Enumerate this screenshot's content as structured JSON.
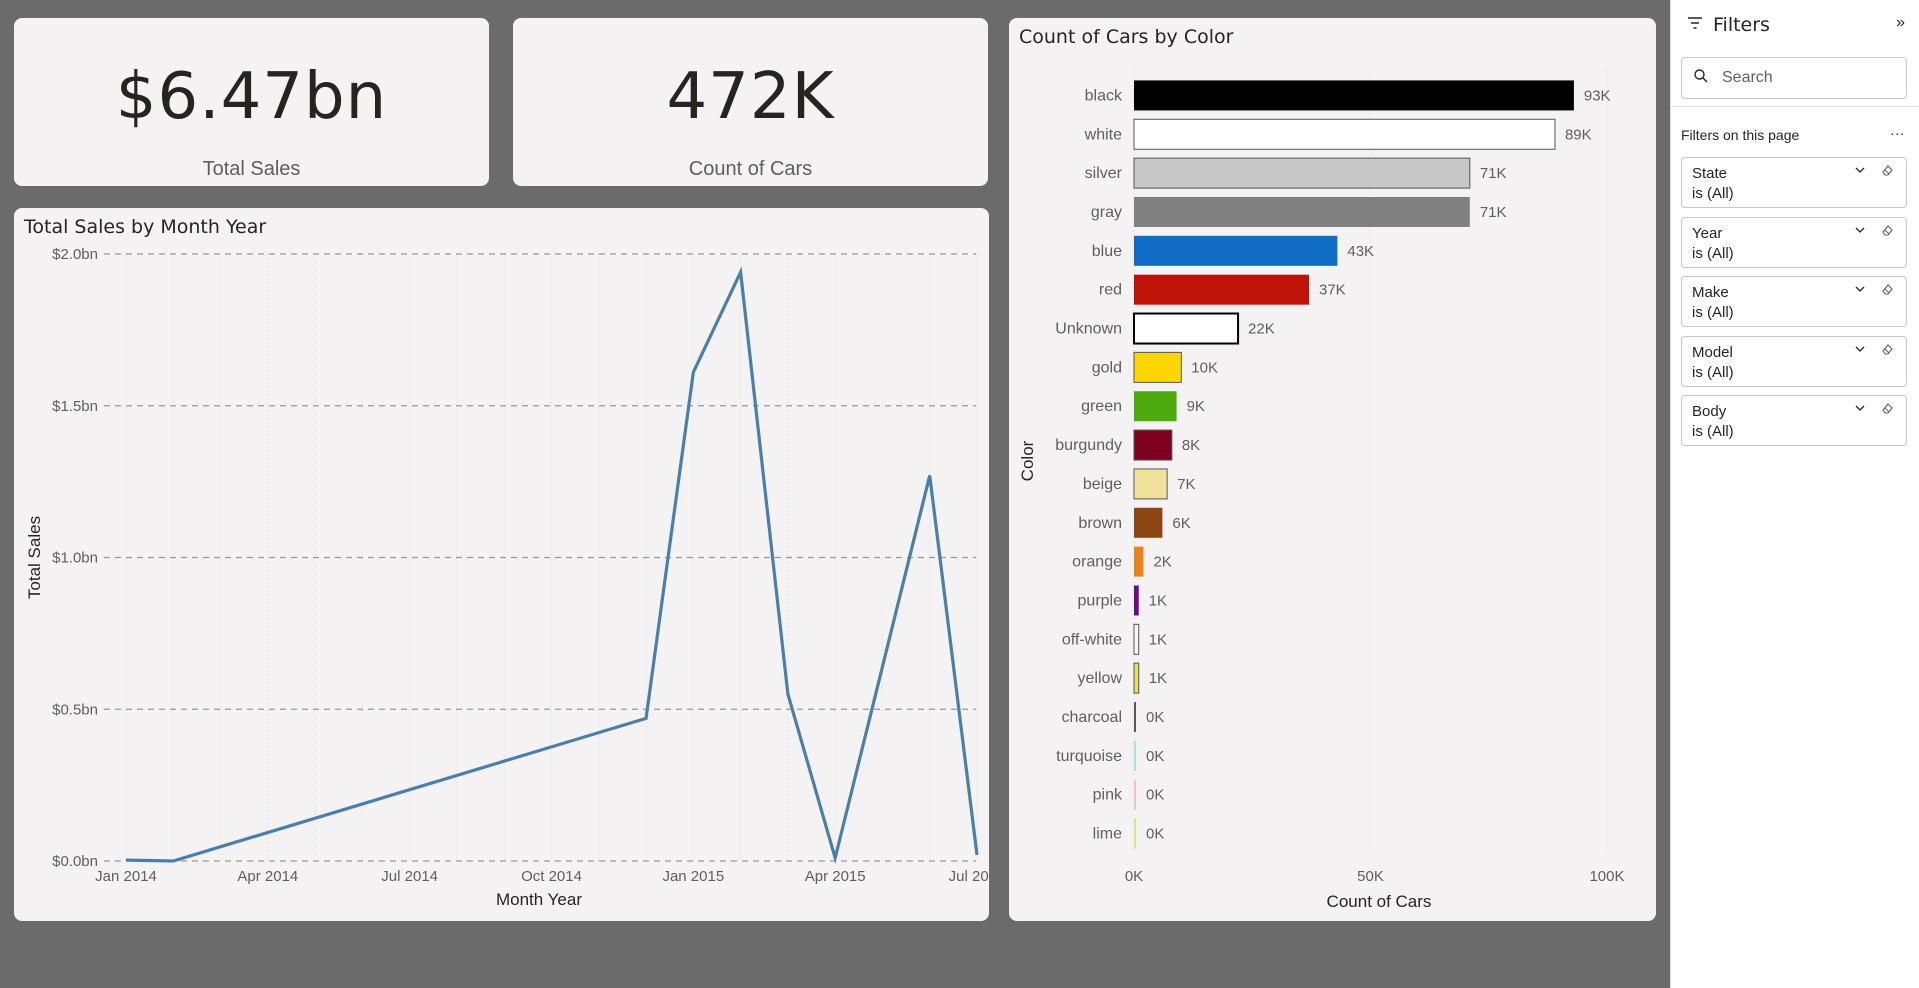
{
  "kpis": [
    {
      "value": "$6.47bn",
      "label": "Total Sales"
    },
    {
      "value": "472K",
      "label": "Count of Cars"
    }
  ],
  "line_title": "Total Sales by Month Year",
  "bar_title": "Count of Cars by Color",
  "chart_data": [
    {
      "type": "line",
      "title": "Total Sales by Month Year",
      "xlabel": "Month Year",
      "ylabel": "Total Sales",
      "x_ticks": [
        "Jan 2014",
        "Apr 2014",
        "Jul 2014",
        "Oct 2014",
        "Jan 2015",
        "Apr 2015",
        "Jul 2015"
      ],
      "y_ticks": [
        "$0.0bn",
        "$0.5bn",
        "$1.0bn",
        "$1.5bn",
        "$2.0bn"
      ],
      "ylim": [
        0,
        2.0
      ],
      "y_unit": "bn",
      "x": [
        "2014-01",
        "2014-02",
        "2014-12",
        "2015-01",
        "2015-02",
        "2015-03",
        "2015-04",
        "2015-06",
        "2015-07"
      ],
      "series": [
        {
          "values": [
            0.003,
            0.0,
            0.47,
            1.61,
            1.94,
            0.55,
            0.01,
            1.27,
            0.02
          ]
        }
      ],
      "line_color": "#4a7fab",
      "grid": "horizontal dashed"
    },
    {
      "type": "bar",
      "orientation": "horizontal",
      "title": "Count of Cars by Color",
      "xlabel": "Count of Cars",
      "ylabel": "Color",
      "x_ticks": [
        "0K",
        "50K",
        "100K"
      ],
      "xlim": [
        0,
        100
      ],
      "categories": [
        "black",
        "white",
        "silver",
        "gray",
        "blue",
        "red",
        "Unknown",
        "gold",
        "green",
        "burgundy",
        "beige",
        "brown",
        "orange",
        "purple",
        "off-white",
        "yellow",
        "charcoal",
        "turquoise",
        "pink",
        "lime"
      ],
      "values": [
        93,
        89,
        71,
        71,
        43,
        37,
        22,
        10,
        9,
        8,
        7,
        6,
        2,
        1,
        1,
        1,
        0,
        0,
        0,
        0
      ],
      "value_labels": [
        "93K",
        "89K",
        "71K",
        "71K",
        "43K",
        "37K",
        "22K",
        "10K",
        "9K",
        "8K",
        "7K",
        "6K",
        "2K",
        "1K",
        "1K",
        "1K",
        "0K",
        "0K",
        "0K",
        "0K"
      ],
      "colors": [
        "#000000",
        "#ffffff",
        "#c8c8c8",
        "#808080",
        "#0f6cc7",
        "#c01307",
        "#ffffff",
        "#ffd700",
        "#4daa0f",
        "#800020",
        "#f0e29a",
        "#8b4513",
        "#e8841e",
        "#6a0d83",
        "#f7f7f7",
        "#e8e062",
        "#5a5a5a",
        "#a8e6dc",
        "#f5c0cb",
        "#c7ef7d"
      ],
      "outlined": [
        false,
        true,
        true,
        false,
        false,
        false,
        true,
        true,
        false,
        true,
        true,
        false,
        false,
        false,
        true,
        true,
        false,
        false,
        false,
        false
      ]
    }
  ],
  "filters": {
    "title": "Filters",
    "search_placeholder": "Search",
    "section_label": "Filters on this page",
    "more": "...",
    "items": [
      {
        "name": "State",
        "value": "is (All)"
      },
      {
        "name": "Year",
        "value": "is (All)"
      },
      {
        "name": "Make",
        "value": "is (All)"
      },
      {
        "name": "Model",
        "value": "is (All)"
      },
      {
        "name": "Body",
        "value": "is (All)"
      }
    ]
  }
}
